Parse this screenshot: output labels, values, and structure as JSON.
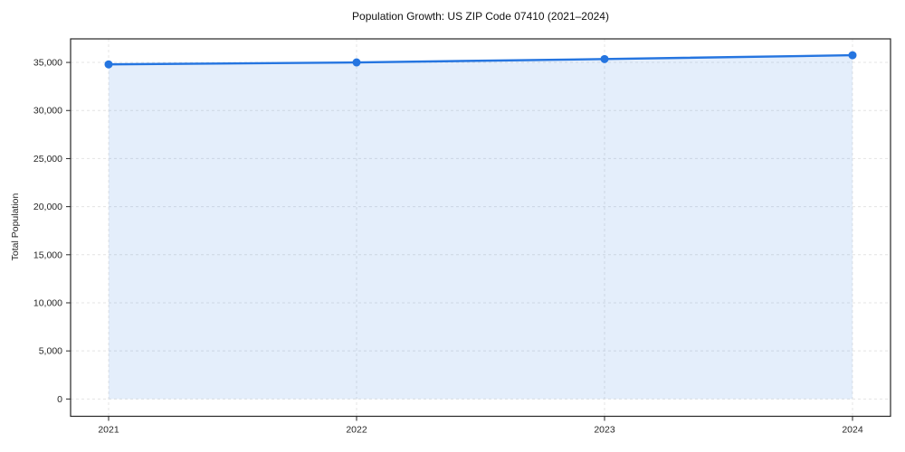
{
  "chart_data": {
    "type": "line",
    "title": "Population Growth: US ZIP Code 07410 (2021–2024)",
    "xlabel": "",
    "ylabel": "Total Population",
    "x": [
      "2021",
      "2022",
      "2023",
      "2024"
    ],
    "series": [
      {
        "name": "Total Population",
        "values": [
          34800,
          35000,
          35350,
          35750
        ]
      }
    ],
    "yticks": [
      0,
      5000,
      10000,
      15000,
      20000,
      25000,
      30000,
      35000
    ],
    "ylim": [
      -1800,
      37450
    ],
    "grid": true,
    "grid_style": "dashed",
    "legend": "none",
    "area_fill": true,
    "marker": "circle",
    "colors": {
      "line": "#2575e0",
      "fill": "rgba(37,117,224,0.12)",
      "grid": "#e4e4e4",
      "axis": "#262626",
      "text": "#262626",
      "title": "#111111"
    }
  }
}
